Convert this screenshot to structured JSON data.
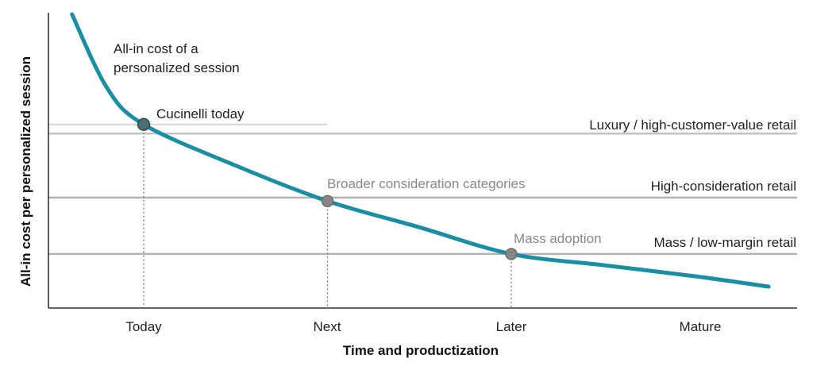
{
  "chart_data": {
    "type": "line",
    "xlabel": "Time and productization",
    "ylabel": "All-in cost per personalized session",
    "categories": [
      "Today",
      "Next",
      "Later",
      "Mature"
    ],
    "curve_label": [
      "All-in cost of a",
      "personalized session"
    ],
    "series": [
      {
        "color": "#1a8fa3",
        "x": [
          -0.39,
          -0.2,
          0,
          0.5,
          1,
          1.5,
          2,
          2.5,
          3,
          3.4
        ],
        "y": [
          100,
          75,
          62.5,
          48.5,
          36.4,
          27.5,
          18.4,
          14.6,
          10.8,
          7.3
        ]
      }
    ],
    "thresholds": [
      {
        "label": "Luxury / high-customer-value retail",
        "y": 59.4,
        "color": "#c4c4c4"
      },
      {
        "label": "High-consideration retail",
        "y": 37.6,
        "color": "#b4b4b4"
      },
      {
        "label": "Mass / low-margin retail",
        "y": 18.4,
        "color": "#b4b4b4"
      }
    ],
    "short_line": {
      "y": 62.5,
      "color": "#d4d4d4"
    },
    "points": [
      {
        "label": "Cucinelli today",
        "x": 0,
        "y": 62.5,
        "style": "dark",
        "fill": "#4f6e74"
      },
      {
        "label": "Broader consideration categories",
        "x": 1,
        "y": 36.4,
        "style": "grey",
        "fill": "#868686"
      },
      {
        "label": "Mass adoption",
        "x": 2,
        "y": 18.4,
        "style": "grey",
        "fill": "#868686"
      }
    ],
    "ylim": [
      0,
      100
    ],
    "xlim": [
      -0.52,
      3.4
    ],
    "grid": false
  }
}
